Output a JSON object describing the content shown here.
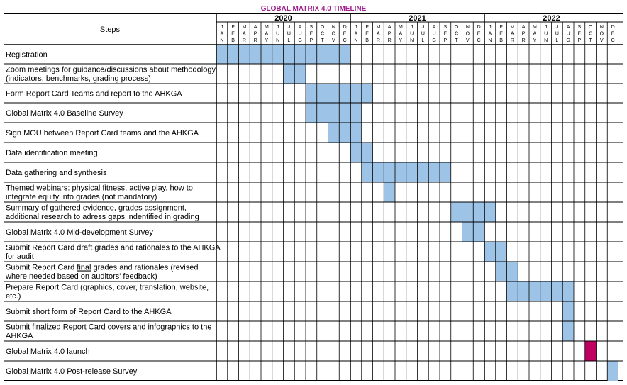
{
  "title": "GLOBAL MATRIX 4.0 TIMELINE",
  "steps_header": "Steps",
  "years": [
    "2020",
    "2021",
    "2022"
  ],
  "months_2020": [
    "JAN",
    "FEB",
    "MAR",
    "APR",
    "MAY",
    "JUN",
    "JUL",
    "AUG",
    "SEP",
    "OCT",
    "NOV",
    "DEC"
  ],
  "months_2021": [
    "JAN",
    "FEB",
    "MAR",
    "APR",
    "MAY",
    "JUN",
    "JUL",
    "AUG",
    "SEP",
    "OCT",
    "NOV",
    "DEC"
  ],
  "months_2022": [
    "JAN",
    "FEB",
    "MAR",
    "APR",
    "MAY",
    "JUN",
    "JUL",
    "AUG",
    "SEP",
    "OCT",
    "NOV",
    "DEC"
  ],
  "colors": {
    "bar": "#9dc3e6",
    "launch": "#c00060",
    "title": "#a0208e"
  },
  "tasks": [
    {
      "lines": [
        "Registration"
      ],
      "start": 0,
      "end": 11
    },
    {
      "lines": [
        "Zoom meetings for guidance/discussions about methodology",
        "(indicators, benchmarks, grading process)"
      ],
      "start": 6,
      "end": 7
    },
    {
      "lines": [
        "Form Report Card Teams and report to the AHKGA"
      ],
      "start": 8,
      "end": 13
    },
    {
      "lines": [
        "Global Matrix 4.0 Baseline Survey"
      ],
      "start": 8,
      "end": 12
    },
    {
      "lines": [
        "Sign MOU between Report Card teams and the AHKGA"
      ],
      "start": 10,
      "end": 12
    },
    {
      "lines": [
        "Data identification meeting"
      ],
      "start": 12,
      "end": 13
    },
    {
      "lines": [
        "Data gathering and synthesis"
      ],
      "start": 13,
      "end": 20
    },
    {
      "lines": [
        "Themed webinars: physical fitness, active play, how to",
        "integrate equity into grades (not mandatory)"
      ],
      "start": 15,
      "end": 15
    },
    {
      "lines": [
        "Summary of gathered evidence, grades assignment,",
        "additional research to adress gaps indentified in grading"
      ],
      "start": 21,
      "end": 24
    },
    {
      "lines": [
        "Global Matrix 4.0 Mid-development Survey"
      ],
      "start": 22,
      "end": 23
    },
    {
      "lines": [
        "Submit Report Card draft grades and rationales to the AHKGA",
        "for audit"
      ],
      "start": 24,
      "end": 25
    },
    {
      "lines": [
        "Submit Report Card final grades and rationales (revised",
        "where needed based on auditors' feedback)"
      ],
      "start": 25,
      "end": 26
    },
    {
      "lines": [
        "Prepare Report Card (graphics, cover, translation, website,",
        "etc.)"
      ],
      "start": 26,
      "end": 31
    },
    {
      "lines": [
        "Submit short form of Report Card to the AHKGA"
      ],
      "start": 31,
      "end": 31
    },
    {
      "lines": [
        "Submit finalized Report Card covers and infographics to the",
        "AHKGA"
      ],
      "start": 31,
      "end": 31
    },
    {
      "lines": [
        "Global Matrix 4.0 launch"
      ],
      "start": 33,
      "end": 33,
      "highlight": true
    },
    {
      "lines": [
        "Global Matrix 4.0 Post-release Survey"
      ],
      "start": 35,
      "end": 35
    }
  ]
}
